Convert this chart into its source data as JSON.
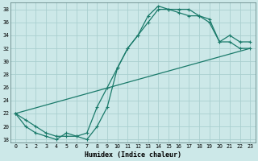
{
  "xlabel": "Humidex (Indice chaleur)",
  "bg_color": "#cce8e8",
  "grid_color": "#aacfcf",
  "line_color": "#1a7a6a",
  "xlim": [
    -0.5,
    23.5
  ],
  "ylim": [
    17.5,
    39
  ],
  "yticks": [
    18,
    20,
    22,
    24,
    26,
    28,
    30,
    32,
    34,
    36,
    38
  ],
  "xticks": [
    0,
    1,
    2,
    3,
    4,
    5,
    6,
    7,
    8,
    9,
    10,
    11,
    12,
    13,
    14,
    15,
    16,
    17,
    18,
    19,
    20,
    21,
    22,
    23
  ],
  "line1_x": [
    0,
    1,
    2,
    3,
    4,
    5,
    6,
    7,
    8,
    9,
    10,
    11,
    12,
    13,
    14,
    15,
    16,
    17,
    18,
    19,
    20,
    21,
    22,
    23
  ],
  "line1_y": [
    22,
    20,
    19,
    18.5,
    18,
    19,
    18.5,
    18,
    20,
    23,
    29,
    32,
    34,
    36,
    38,
    38,
    37.5,
    37,
    37,
    36,
    33,
    33,
    32,
    32
  ],
  "line2_x": [
    0,
    1,
    2,
    3,
    4,
    5,
    6,
    7,
    8,
    9,
    10,
    11,
    12,
    13,
    14,
    15,
    16,
    17,
    18,
    19,
    20,
    21,
    22,
    23
  ],
  "line2_y": [
    22,
    21,
    20,
    19,
    18.5,
    18.5,
    18.5,
    19,
    23,
    26,
    29,
    32,
    34,
    37,
    38.5,
    38,
    38,
    38,
    37,
    36.5,
    33,
    34,
    33,
    33
  ],
  "line3_x": [
    0,
    23
  ],
  "line3_y": [
    22,
    32
  ]
}
